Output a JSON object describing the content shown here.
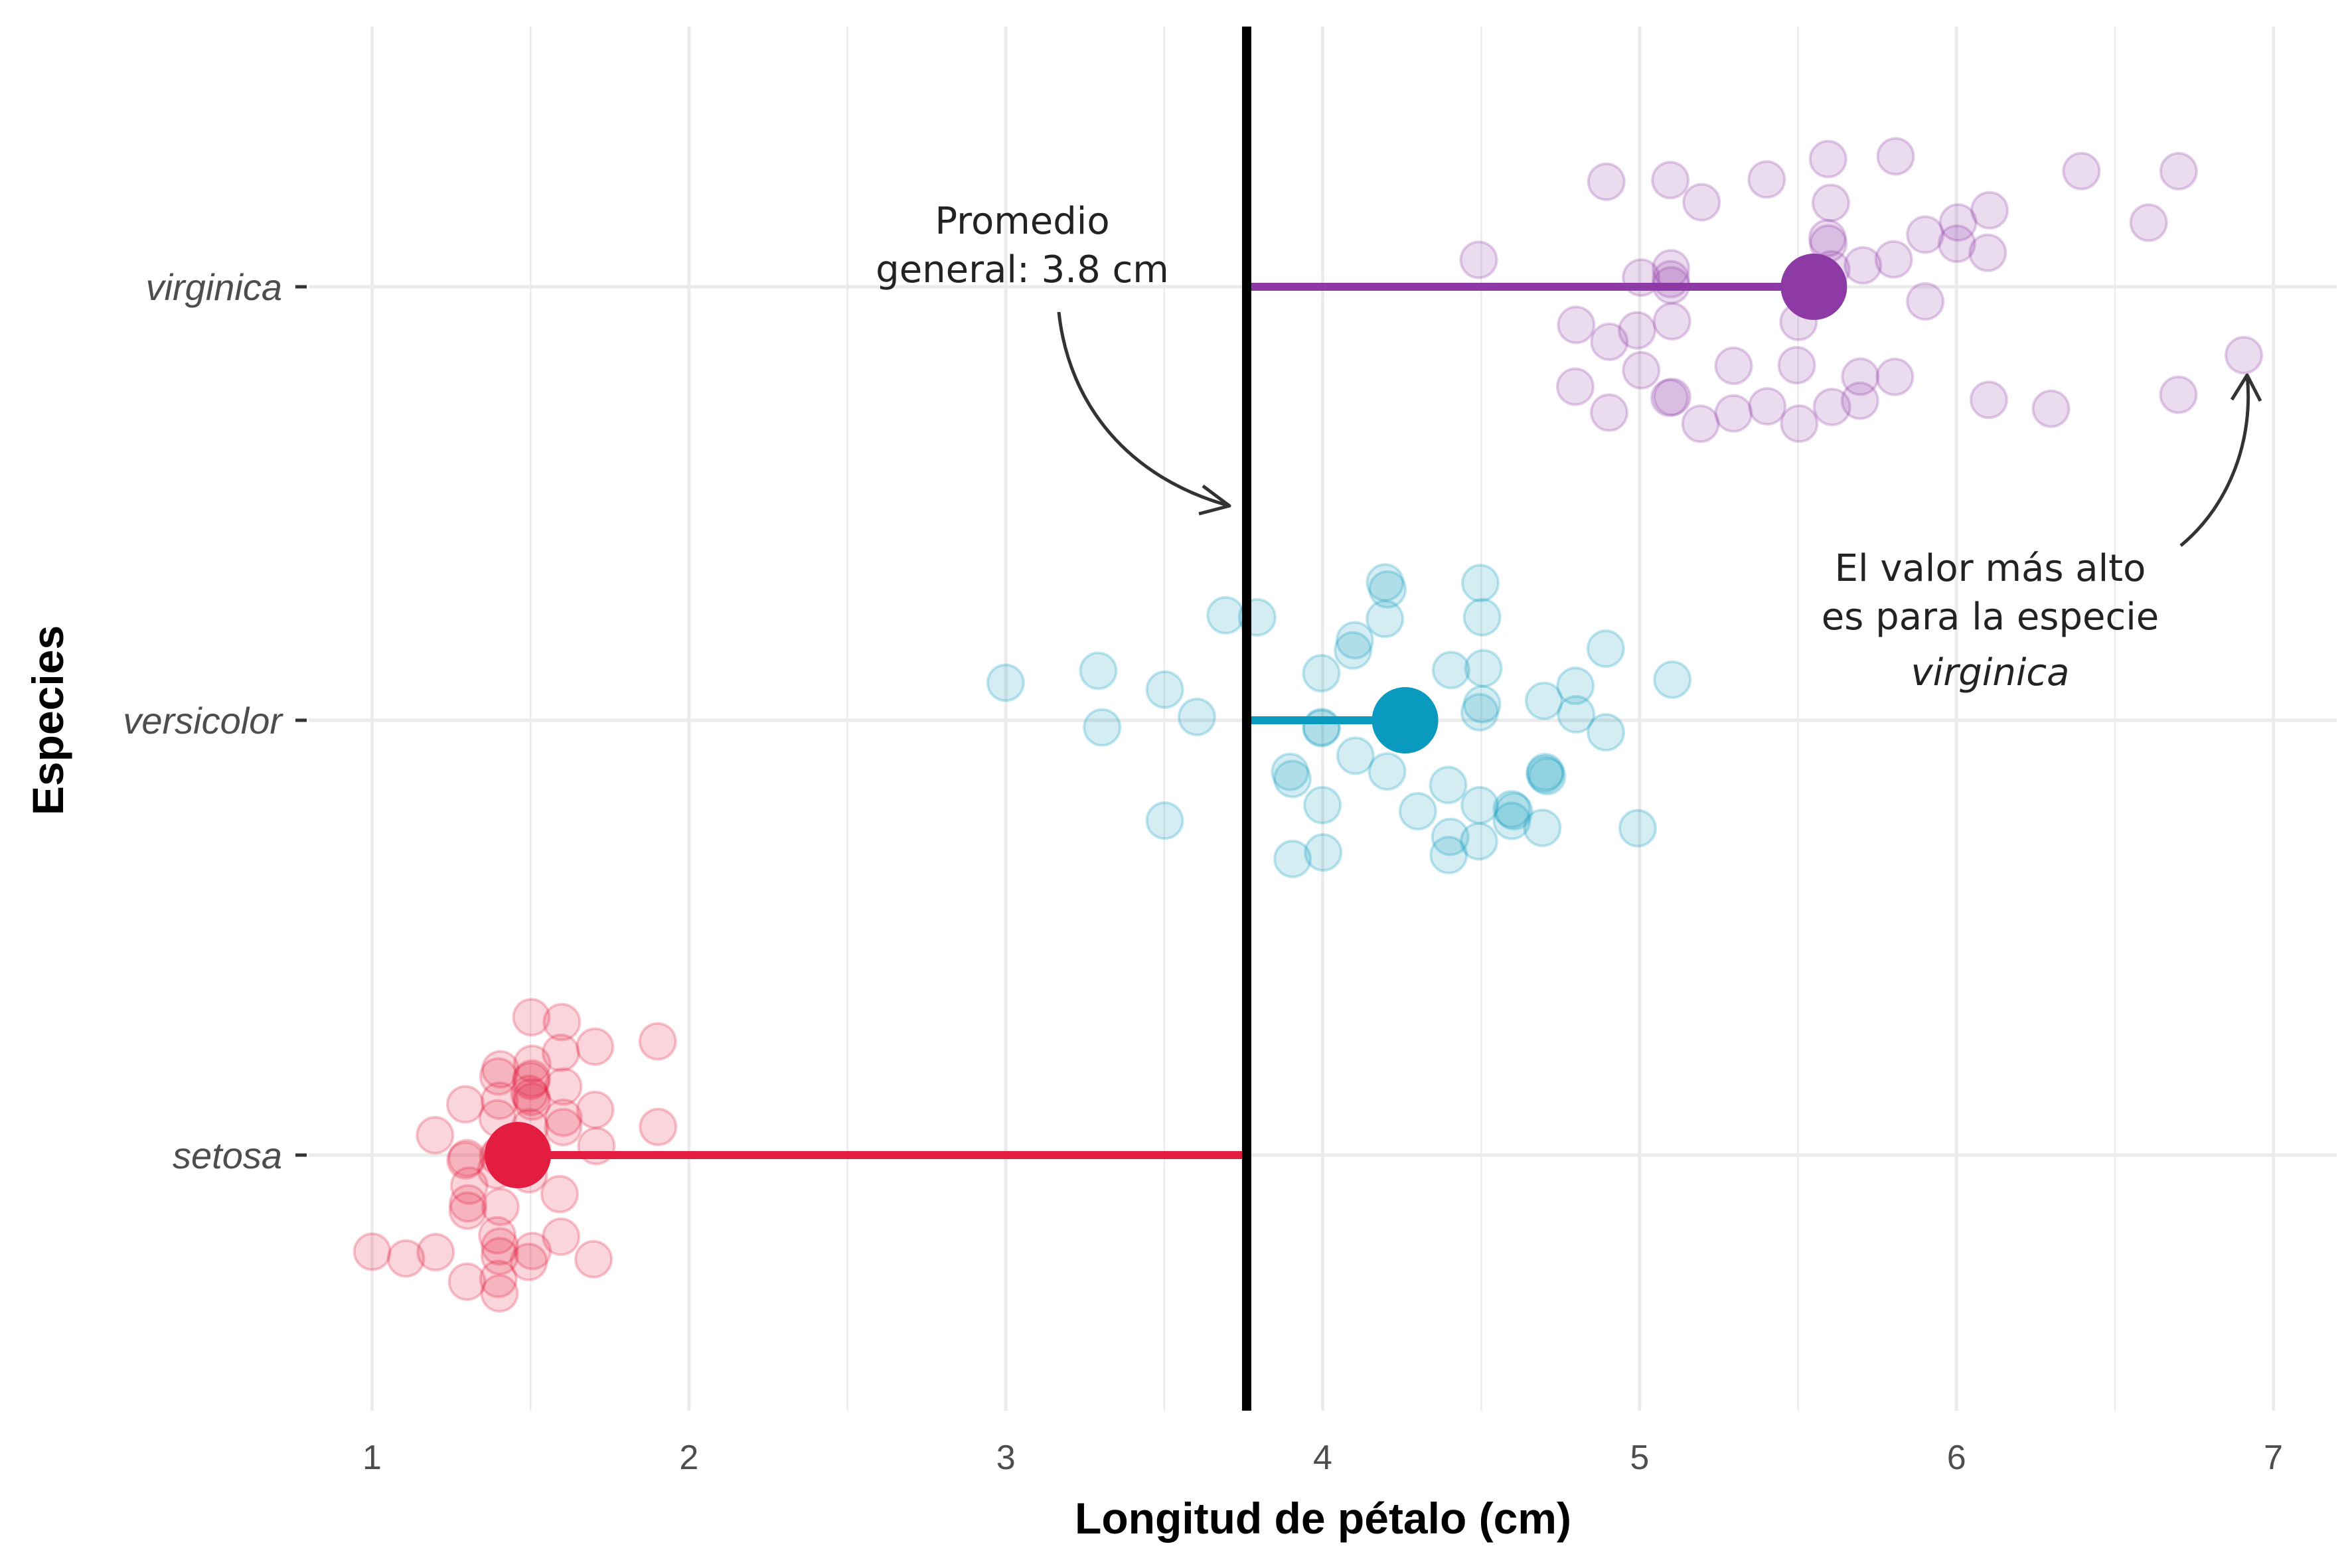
{
  "chart_data": {
    "type": "scatter",
    "xlabel": "Longitud de pétalo (cm)",
    "ylabel": "Especies",
    "xlim": [
      0.8,
      7.2
    ],
    "x_ticks": [
      "1",
      "2",
      "3",
      "4",
      "5",
      "6",
      "7"
    ],
    "grid": true,
    "overall_mean": 3.76,
    "overall_mean_label": "Promedio general: 3.8 cm",
    "categories": [
      "setosa",
      "versicolor",
      "virginica"
    ],
    "colors": {
      "setosa": "#e31d3f",
      "versicolor": "#0a9abf",
      "virginica": "#8e3aa6",
      "mean_line": "#000000"
    },
    "series": [
      {
        "name": "setosa",
        "mean": 1.46,
        "values": [
          1.4,
          1.4,
          1.3,
          1.5,
          1.4,
          1.7,
          1.4,
          1.5,
          1.4,
          1.5,
          1.5,
          1.6,
          1.4,
          1.1,
          1.2,
          1.5,
          1.3,
          1.4,
          1.7,
          1.5,
          1.7,
          1.5,
          1.0,
          1.7,
          1.9,
          1.6,
          1.6,
          1.5,
          1.4,
          1.6,
          1.6,
          1.5,
          1.5,
          1.4,
          1.5,
          1.2,
          1.3,
          1.4,
          1.3,
          1.5,
          1.3,
          1.3,
          1.3,
          1.6,
          1.9,
          1.4,
          1.6,
          1.4,
          1.5,
          1.4
        ]
      },
      {
        "name": "versicolor",
        "mean": 4.26,
        "values": [
          4.7,
          4.5,
          4.9,
          4.0,
          4.6,
          4.5,
          4.7,
          3.3,
          4.6,
          3.9,
          3.5,
          4.2,
          4.0,
          4.7,
          3.6,
          4.4,
          4.5,
          4.1,
          4.5,
          3.9,
          4.8,
          4.0,
          4.9,
          4.7,
          4.3,
          4.4,
          4.8,
          5.0,
          4.5,
          3.5,
          3.8,
          3.7,
          3.9,
          5.1,
          4.5,
          4.5,
          4.7,
          4.4,
          4.1,
          4.0,
          4.4,
          4.6,
          4.0,
          3.3,
          4.2,
          4.2,
          4.2,
          4.3,
          3.0,
          4.1
        ]
      },
      {
        "name": "virginica",
        "mean": 5.55,
        "values": [
          6.0,
          5.1,
          5.9,
          5.6,
          5.8,
          6.6,
          4.5,
          6.3,
          5.8,
          6.1,
          5.1,
          5.3,
          5.5,
          5.0,
          5.1,
          5.3,
          5.5,
          6.7,
          6.9,
          5.0,
          5.7,
          4.9,
          6.7,
          4.9,
          5.7,
          6.0,
          4.8,
          4.9,
          5.6,
          5.8,
          6.1,
          6.4,
          5.6,
          5.1,
          5.6,
          6.1,
          5.6,
          5.5,
          4.8,
          5.4,
          5.6,
          5.1,
          5.1,
          5.9,
          5.7,
          5.2,
          5.0,
          5.2,
          5.4,
          5.1
        ]
      }
    ],
    "annotations": [
      {
        "lines": [
          "Promedio",
          "general: 3.8 cm"
        ]
      },
      {
        "lines": [
          "El valor más alto",
          "es para la especie",
          "virginica"
        ]
      }
    ]
  }
}
